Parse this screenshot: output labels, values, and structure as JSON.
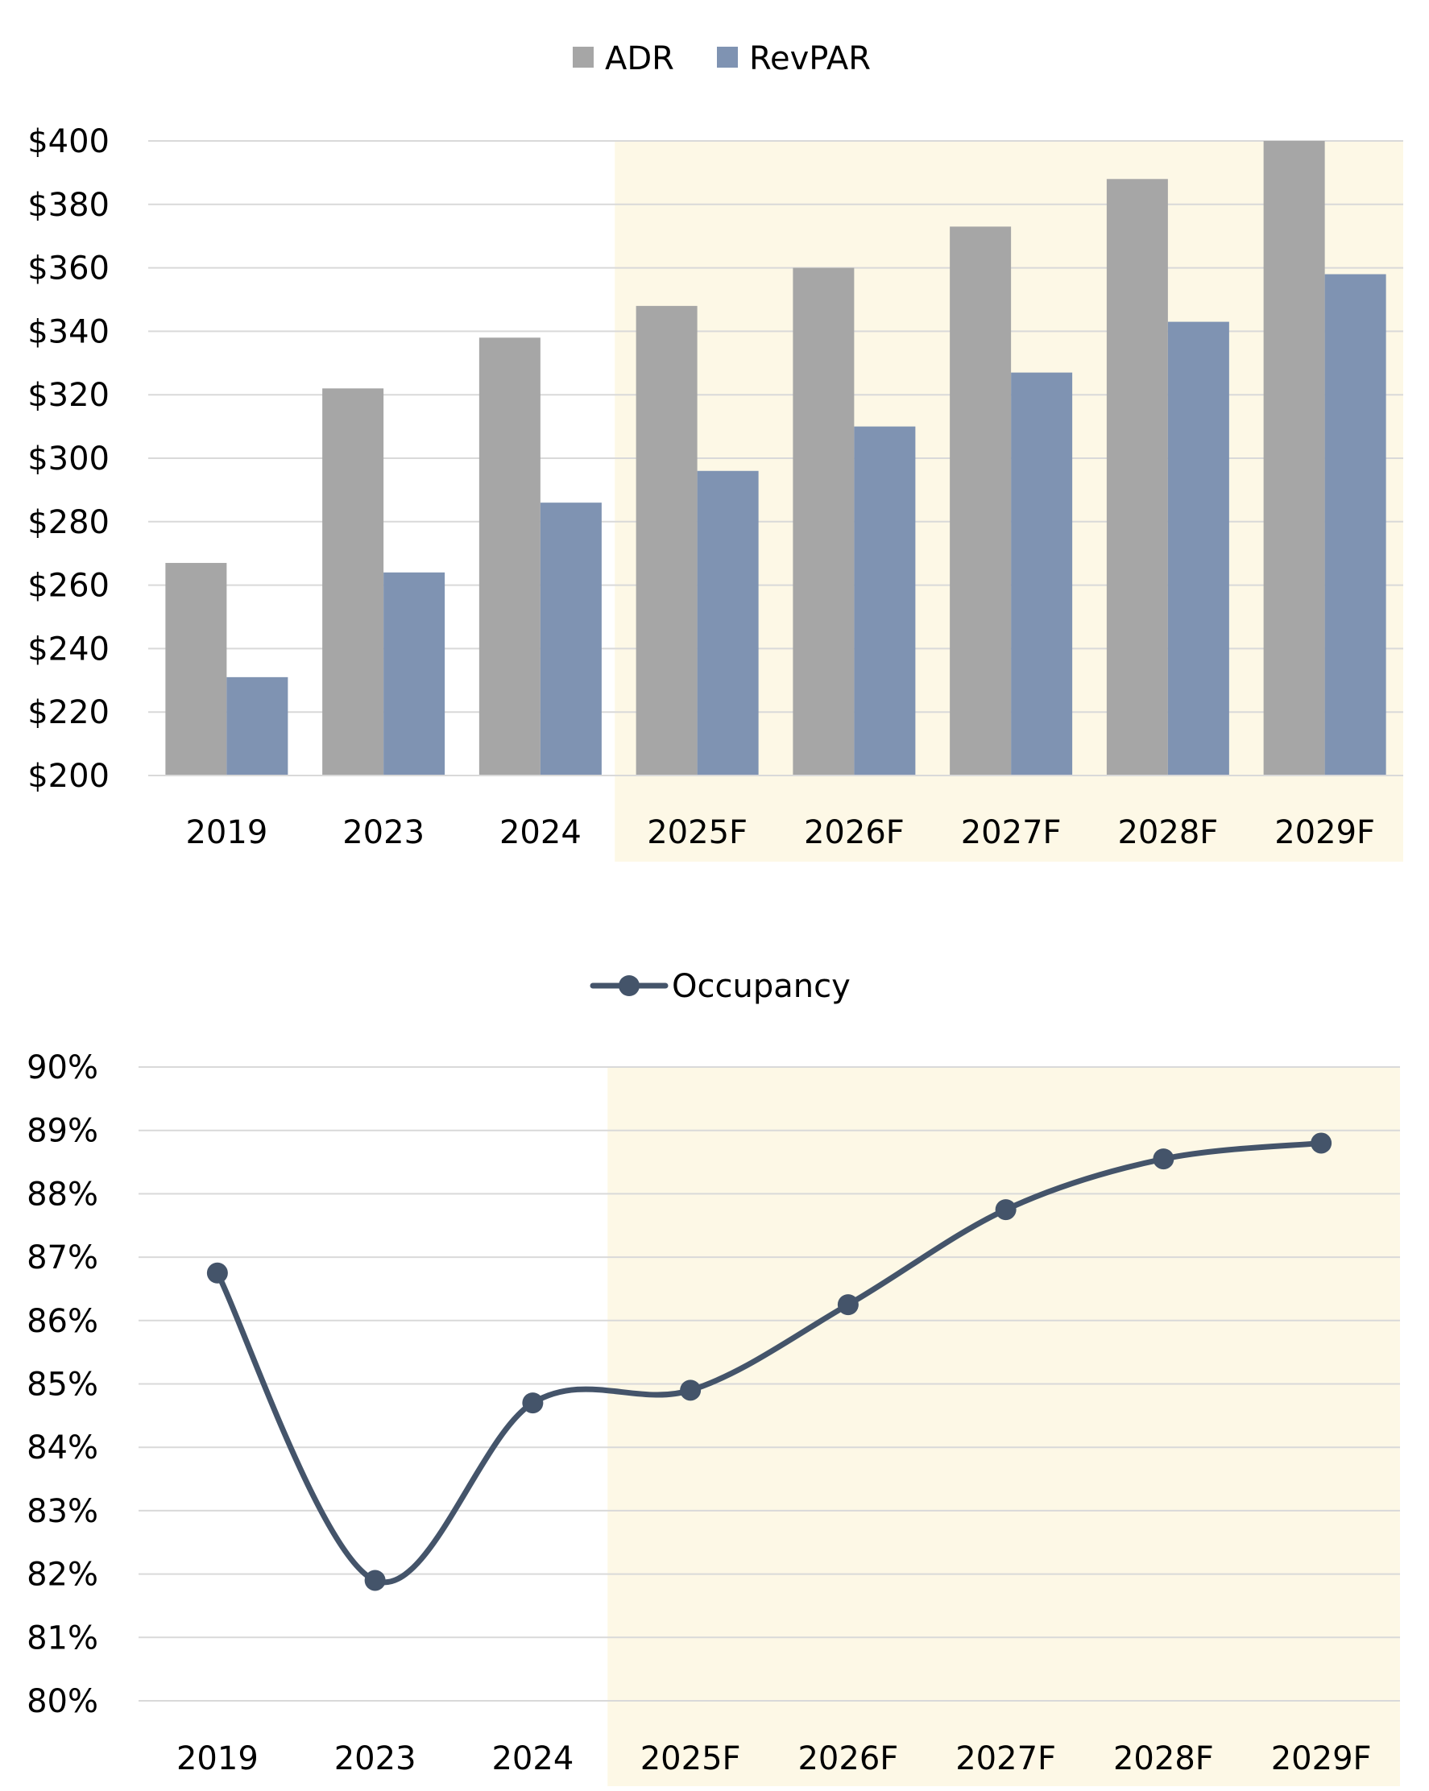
{
  "chart_data": [
    {
      "type": "bar",
      "categories": [
        "2019",
        "2023",
        "2024",
        "2025F",
        "2026F",
        "2027F",
        "2028F",
        "2029F"
      ],
      "series": [
        {
          "name": "ADR",
          "color": "#a6a6a6",
          "values": [
            267,
            322,
            338,
            348,
            360,
            373,
            388,
            400
          ]
        },
        {
          "name": "RevPAR",
          "color": "#7f93b2",
          "values": [
            231,
            264,
            286,
            296,
            310,
            327,
            343,
            358
          ]
        }
      ],
      "ylim": [
        200,
        400
      ],
      "yticks": [
        200,
        220,
        240,
        260,
        280,
        300,
        320,
        340,
        360,
        380,
        400
      ],
      "ytick_labels": [
        "$200",
        "$220",
        "$240",
        "$260",
        "$280",
        "$300",
        "$320",
        "$340",
        "$360",
        "$380",
        "$400"
      ],
      "legend": "top-center",
      "grid": true,
      "forecast_highlight": {
        "from": "2025F",
        "to": "2029F",
        "color": "#fdf8e6"
      }
    },
    {
      "type": "line",
      "categories": [
        "2019",
        "2023",
        "2024",
        "2025F",
        "2026F",
        "2027F",
        "2028F",
        "2029F"
      ],
      "series": [
        {
          "name": "Occupancy",
          "color": "#44546a",
          "values": [
            86.75,
            81.9,
            84.7,
            84.9,
            86.25,
            87.75,
            88.55,
            88.8
          ]
        }
      ],
      "ylim": [
        80,
        90
      ],
      "yticks": [
        80,
        81,
        82,
        83,
        84,
        85,
        86,
        87,
        88,
        89,
        90
      ],
      "ytick_labels": [
        "80%",
        "81%",
        "82%",
        "83%",
        "84%",
        "85%",
        "86%",
        "87%",
        "88%",
        "89%",
        "90%"
      ],
      "smooth": true,
      "legend": "top-center",
      "grid": true,
      "forecast_highlight": {
        "from": "2025F",
        "to": "2029F",
        "color": "#fdf8e6"
      }
    }
  ]
}
